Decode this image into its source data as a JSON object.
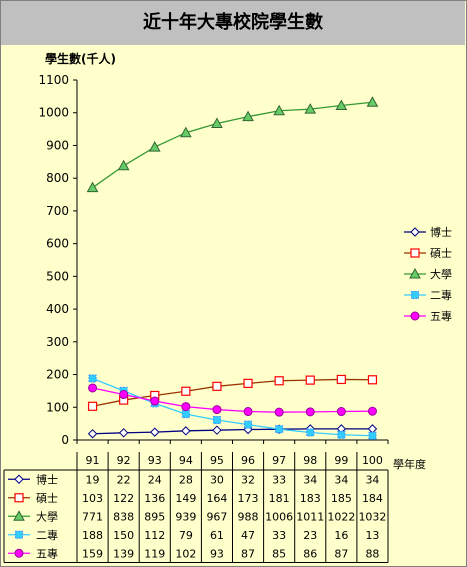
{
  "chart_data": {
    "type": "line",
    "title": "近十年大專校院學生數",
    "ylabel": "學生數(千人)",
    "xlabel": "學年度",
    "ylim": [
      0,
      1100
    ],
    "ytick_step": 100,
    "grid": false,
    "legend": "right",
    "plot_bg": "#ffffcc",
    "categories": [
      "91",
      "92",
      "93",
      "94",
      "95",
      "96",
      "97",
      "98",
      "99",
      "100"
    ],
    "series": [
      {
        "name": "博士",
        "color": "#000080",
        "marker": "diamond",
        "marker_fill": "#ffffff",
        "values": [
          19,
          22,
          24,
          28,
          30,
          32,
          33,
          34,
          34,
          34
        ]
      },
      {
        "name": "碩士",
        "color": "#993300",
        "marker": "square",
        "marker_fill": "#ffffff",
        "marker_stroke": "#ff0000",
        "values": [
          103,
          122,
          136,
          149,
          164,
          173,
          181,
          183,
          185,
          184
        ]
      },
      {
        "name": "大學",
        "color": "#339933",
        "marker": "triangle",
        "marker_fill": "#339933",
        "values": [
          771,
          838,
          895,
          939,
          967,
          988,
          1006,
          1011,
          1022,
          1032
        ]
      },
      {
        "name": "二專",
        "color": "#33ccff",
        "marker": "cross",
        "marker_fill": "#33ccff",
        "values": [
          188,
          150,
          112,
          79,
          61,
          47,
          33,
          23,
          16,
          13
        ]
      },
      {
        "name": "五專",
        "color": "#ff00ff",
        "marker": "circle",
        "marker_fill": "#ff00ff",
        "values": [
          159,
          139,
          119,
          102,
          93,
          87,
          85,
          86,
          87,
          88
        ]
      }
    ]
  }
}
